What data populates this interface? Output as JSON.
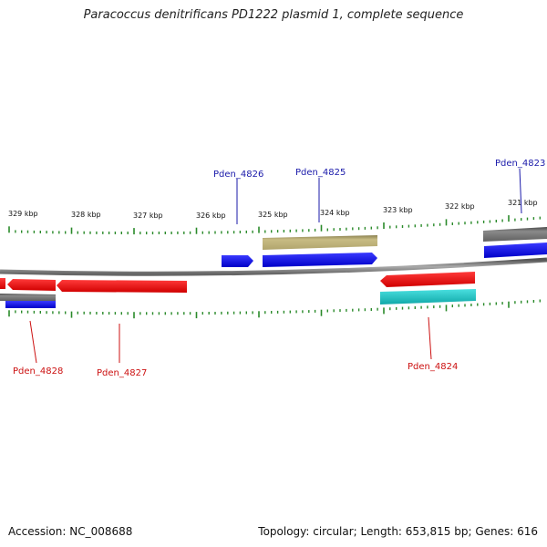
{
  "title": "Paracoccus denitrificans PD1222 plasmid 1, complete sequence",
  "footer": {
    "accession": "Accession: NC_008688",
    "info": "Topology: circular; Length: 653,815 bp; Genes: 616"
  },
  "colors": {
    "forward_gene": "#0000ee",
    "reverse_gene": "#ee0000",
    "rna_or_other": "#b5a86a",
    "grey_feature": "#6f6f6f",
    "cyan_feature": "#1fbfbf",
    "tick": "#2a8a2a",
    "label_forward": "#1a1aaa",
    "label_reverse": "#cc1111"
  },
  "scale": {
    "tick_labels": [
      "329 kbp",
      "328 kbp",
      "327 kbp",
      "326 kbp",
      "325 kbp",
      "324 kbp",
      "323 kbp",
      "322 kbp",
      "321 kbp"
    ]
  },
  "gene_labels": {
    "forward": [
      "Pden_4826",
      "Pden_4825",
      "Pden_4823"
    ],
    "reverse": [
      "Pden_4828",
      "Pden_4827",
      "Pden_4824"
    ]
  }
}
